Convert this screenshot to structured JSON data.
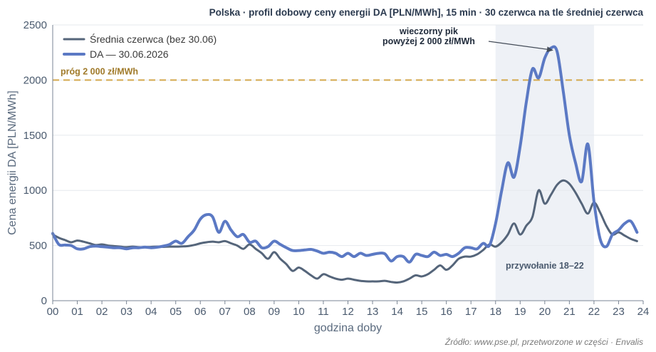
{
  "title": "Polska · profil dobowy ceny energii DA [PLN/MWh], 15 min · 30 czerwca na tle średniej czerwca",
  "source": "Źródło: www.pse.pl, przetworzone w części · Envalis",
  "colors": {
    "average": "#55657a",
    "da": "#5b79c4",
    "threshold": "#d4a84c",
    "band": "#eef1f6",
    "grid": "#e6e9ee",
    "axis": "#7a8594"
  },
  "chart_data": {
    "type": "line",
    "xlabel": "godzina doby",
    "ylabel": "Cena energii DA [PLN/MWh]",
    "xlim": [
      0,
      24
    ],
    "ylim": [
      0,
      2500
    ],
    "x_ticks": [
      "00",
      "01",
      "02",
      "03",
      "04",
      "05",
      "06",
      "07",
      "08",
      "09",
      "10",
      "11",
      "12",
      "13",
      "14",
      "15",
      "16",
      "17",
      "18",
      "19",
      "20",
      "21",
      "22",
      "23",
      "24"
    ],
    "y_ticks": [
      0,
      500,
      1000,
      1500,
      2000,
      2500
    ],
    "grid": "horizontal",
    "legend_position": "top-left",
    "threshold": {
      "value": 2000,
      "label": "próg 2 000 zł/MWh"
    },
    "band": {
      "from": 18,
      "to": 22,
      "label": "przywołanie 18–22"
    },
    "annotation": {
      "lines": [
        "wieczorny pik",
        "powyżej 2 000 zł/MWh"
      ],
      "target_x": 20.35,
      "target_y": 2270
    },
    "series": [
      {
        "name": "Średnia czerwca (bez 30.06)",
        "x": [
          0,
          0.25,
          0.5,
          0.75,
          1.0,
          1.25,
          1.5,
          1.75,
          2.0,
          2.25,
          2.5,
          2.75,
          3.0,
          3.25,
          3.5,
          3.75,
          4.0,
          4.25,
          4.5,
          4.75,
          5.0,
          5.25,
          5.5,
          5.75,
          6.0,
          6.25,
          6.5,
          6.75,
          7.0,
          7.25,
          7.5,
          7.75,
          8.0,
          8.25,
          8.5,
          8.75,
          9.0,
          9.25,
          9.5,
          9.75,
          10.0,
          10.25,
          10.5,
          10.75,
          11.0,
          11.25,
          11.5,
          11.75,
          12.0,
          12.25,
          12.5,
          12.75,
          13.0,
          13.25,
          13.5,
          13.75,
          14.0,
          14.25,
          14.5,
          14.75,
          15.0,
          15.25,
          15.5,
          15.75,
          16.0,
          16.25,
          16.5,
          16.75,
          17.0,
          17.25,
          17.5,
          17.75,
          18.0,
          18.25,
          18.5,
          18.75,
          19.0,
          19.25,
          19.5,
          19.75,
          20.0,
          20.25,
          20.5,
          20.75,
          21.0,
          21.25,
          21.5,
          21.75,
          22.0,
          22.25,
          22.5,
          22.75,
          23.0,
          23.25,
          23.5,
          23.75
        ],
        "values": [
          600,
          570,
          550,
          530,
          545,
          535,
          520,
          505,
          510,
          500,
          495,
          490,
          485,
          490,
          485,
          485,
          488,
          490,
          488,
          490,
          490,
          492,
          495,
          505,
          520,
          530,
          535,
          530,
          540,
          520,
          500,
          470,
          510,
          470,
          430,
          380,
          440,
          380,
          330,
          270,
          300,
          270,
          230,
          200,
          240,
          220,
          200,
          190,
          200,
          190,
          180,
          175,
          175,
          175,
          180,
          170,
          165,
          175,
          200,
          230,
          220,
          240,
          280,
          320,
          280,
          320,
          380,
          400,
          400,
          420,
          460,
          510,
          490,
          530,
          600,
          700,
          600,
          680,
          760,
          1000,
          880,
          960,
          1050,
          1090,
          1060,
          980,
          880,
          790,
          890,
          800,
          680,
          600,
          620,
          590,
          560,
          540
        ]
      },
      {
        "name": "DA — 30.06.2026",
        "x": [
          0,
          0.25,
          0.5,
          0.75,
          1.0,
          1.25,
          1.5,
          1.75,
          2.0,
          2.25,
          2.5,
          2.75,
          3.0,
          3.25,
          3.5,
          3.75,
          4.0,
          4.25,
          4.5,
          4.75,
          5.0,
          5.25,
          5.5,
          5.75,
          6.0,
          6.25,
          6.5,
          6.75,
          7.0,
          7.25,
          7.5,
          7.75,
          8.0,
          8.25,
          8.5,
          8.75,
          9.0,
          9.25,
          9.5,
          9.75,
          10.0,
          10.25,
          10.5,
          10.75,
          11.0,
          11.25,
          11.5,
          11.75,
          12.0,
          12.25,
          12.5,
          12.75,
          13.0,
          13.25,
          13.5,
          13.75,
          14.0,
          14.25,
          14.5,
          14.75,
          15.0,
          15.25,
          15.5,
          15.75,
          16.0,
          16.25,
          16.5,
          16.75,
          17.0,
          17.25,
          17.5,
          17.75,
          18.0,
          18.25,
          18.5,
          18.75,
          19.0,
          19.25,
          19.5,
          19.75,
          20.0,
          20.25,
          20.5,
          20.75,
          21.0,
          21.25,
          21.5,
          21.75,
          22.0,
          22.25,
          22.5,
          22.75,
          23.0,
          23.25,
          23.5,
          23.75
        ],
        "values": [
          610,
          510,
          505,
          500,
          470,
          470,
          490,
          495,
          490,
          485,
          480,
          480,
          470,
          480,
          480,
          485,
          480,
          485,
          495,
          510,
          540,
          520,
          580,
          640,
          740,
          780,
          760,
          620,
          720,
          640,
          580,
          600,
          530,
          540,
          480,
          490,
          540,
          510,
          480,
          455,
          455,
          460,
          465,
          450,
          430,
          440,
          430,
          400,
          430,
          400,
          430,
          410,
          420,
          430,
          425,
          360,
          400,
          400,
          350,
          420,
          410,
          400,
          440,
          410,
          420,
          400,
          430,
          480,
          480,
          470,
          520,
          500,
          700,
          1000,
          1250,
          1120,
          1400,
          1800,
          2100,
          2020,
          2200,
          2290,
          2260,
          1900,
          1500,
          1250,
          1080,
          1420,
          900,
          560,
          490,
          600,
          640,
          700,
          720,
          620
        ]
      }
    ]
  }
}
